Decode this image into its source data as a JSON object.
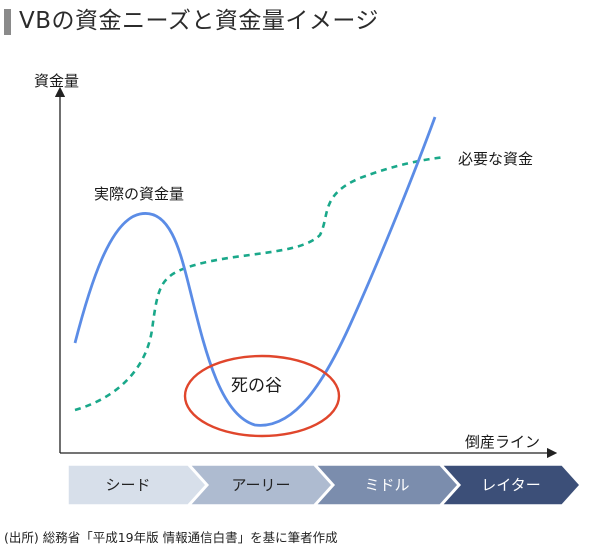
{
  "title": "VBの資金ニーズと資金量イメージ",
  "axes": {
    "y_label": "資金量",
    "x_label": "倒産ライン"
  },
  "curves": {
    "actual_label": "実際の資金量",
    "required_label": "必要な資金",
    "actual_color": "#5b8ce6",
    "required_color": "#1aa88a"
  },
  "valley": {
    "label": "死の谷",
    "color": "#e0462c"
  },
  "stages": [
    {
      "label": "シード",
      "color": "#d7dfea",
      "text_color": "#222222"
    },
    {
      "label": "アーリー",
      "color": "#aebbd0",
      "text_color": "#222222"
    },
    {
      "label": "ミドル",
      "color": "#7b8dad",
      "text_color": "#ffffff"
    },
    {
      "label": "レイター",
      "color": "#3c4f78",
      "text_color": "#ffffff"
    }
  ],
  "source": "(出所) 総務省「平成19年版 情報通信白書」を基に筆者作成"
}
